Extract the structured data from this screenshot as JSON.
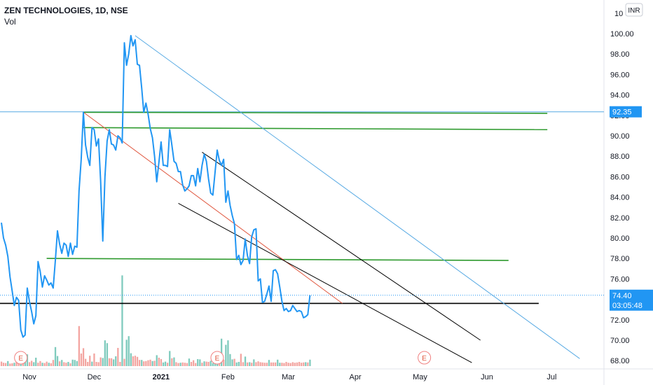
{
  "header": {
    "symbol_line": "ZEN TECHNOLOGIES, 1D, NSE",
    "volume_label": "Vol",
    "currency": "INR"
  },
  "colors": {
    "price": "#2196f3",
    "vol_up": "#7fcbbd",
    "vol_down": "#f3a5a1",
    "green_line": "#2e9a2e",
    "black_line": "#000000",
    "blue_line": "#56a9e3",
    "red_line": "#e0573f",
    "label_blue": "#2196f3"
  },
  "chart_data": {
    "type": "line",
    "title": "ZEN TECHNOLOGIES, 1D, NSE",
    "ylim": [
      67.5,
      101.5
    ],
    "y_ticks": [
      "100.00",
      "98.00",
      "96.00",
      "94.00",
      "92.00",
      "90.00",
      "88.00",
      "86.00",
      "84.00",
      "82.00",
      "80.00",
      "78.00",
      "76.00",
      "74.00",
      "72.00",
      "70.00",
      "68.00"
    ],
    "top_tick_partial": "10",
    "x_tick_labels": [
      {
        "label": "Nov",
        "day": 0
      },
      {
        "label": "Dec",
        "day": 30
      },
      {
        "label": "2021",
        "day": 61,
        "bold": true
      },
      {
        "label": "Feb",
        "day": 92
      },
      {
        "label": "Mar",
        "day": 120
      },
      {
        "label": "Apr",
        "day": 151
      },
      {
        "label": "May",
        "day": 181
      },
      {
        "label": "Jun",
        "day": 212
      },
      {
        "label": "Jul",
        "day": 242
      }
    ],
    "price_series": [
      [
        -13,
        81.5
      ],
      [
        -12,
        80
      ],
      [
        -11,
        79.3
      ],
      [
        -10,
        78.2
      ],
      [
        -9,
        76.2
      ],
      [
        -8,
        74.8
      ],
      [
        -7,
        73.4
      ],
      [
        -6,
        74.2
      ],
      [
        -5,
        73.9
      ],
      [
        -4,
        71
      ],
      [
        -3,
        70.3
      ],
      [
        -2,
        70.5
      ],
      [
        -1,
        75.1
      ],
      [
        0,
        73.8
      ],
      [
        1,
        72.8
      ],
      [
        2,
        71.6
      ],
      [
        3,
        72.4
      ],
      [
        4,
        77.7
      ],
      [
        5,
        76.7
      ],
      [
        6,
        75.2
      ],
      [
        7,
        76.3
      ],
      [
        8,
        75.9
      ],
      [
        9,
        75.4
      ],
      [
        10,
        75.6
      ],
      [
        11,
        75.1
      ],
      [
        12,
        77.8
      ],
      [
        13,
        80.7
      ],
      [
        14,
        79.4
      ],
      [
        15,
        78.5
      ],
      [
        16,
        79.5
      ],
      [
        17,
        79.3
      ],
      [
        18,
        78.2
      ],
      [
        19,
        79.5
      ],
      [
        20,
        78.4
      ],
      [
        21,
        79.2
      ],
      [
        22,
        79.1
      ],
      [
        23,
        84.6
      ],
      [
        24,
        87.7
      ],
      [
        25,
        92.3
      ],
      [
        26,
        89.1
      ],
      [
        27,
        87.9
      ],
      [
        28,
        87.1
      ],
      [
        29,
        90.8
      ],
      [
        30,
        90.6
      ],
      [
        31,
        89
      ],
      [
        32,
        89.7
      ],
      [
        33,
        85.6
      ],
      [
        34,
        79.7
      ],
      [
        35,
        86
      ],
      [
        36,
        89.5
      ],
      [
        37,
        90.6
      ],
      [
        38,
        89.2
      ],
      [
        39,
        89.1
      ],
      [
        40,
        88.6
      ],
      [
        41,
        90
      ],
      [
        42,
        89.8
      ],
      [
        43,
        89.3
      ],
      [
        44,
        99.1
      ],
      [
        45,
        96.9
      ],
      [
        46,
        98
      ],
      [
        47,
        99.8
      ],
      [
        48,
        98.8
      ],
      [
        49,
        99.4
      ],
      [
        50,
        97
      ],
      [
        51,
        96.9
      ],
      [
        52,
        94.7
      ],
      [
        53,
        92.3
      ],
      [
        54,
        93.2
      ],
      [
        55,
        92.1
      ],
      [
        56,
        90.7
      ],
      [
        57,
        89.8
      ],
      [
        58,
        88
      ],
      [
        59,
        85.5
      ],
      [
        60,
        87.4
      ],
      [
        61,
        89.4
      ],
      [
        62,
        87.1
      ],
      [
        63,
        87.1
      ],
      [
        64,
        87
      ],
      [
        65,
        90.6
      ],
      [
        66,
        89.1
      ],
      [
        67,
        87.5
      ],
      [
        68,
        87.3
      ],
      [
        69,
        86.5
      ],
      [
        70,
        86.5
      ],
      [
        71,
        85.2
      ],
      [
        72,
        84.6
      ],
      [
        73,
        84.8
      ],
      [
        74,
        85.1
      ],
      [
        75,
        86.1
      ],
      [
        76,
        86.1
      ],
      [
        77,
        85.1
      ],
      [
        78,
        86.8
      ],
      [
        79,
        85.5
      ],
      [
        80,
        87.1
      ],
      [
        81,
        88.2
      ],
      [
        82,
        87.5
      ],
      [
        83,
        85.8
      ],
      [
        84,
        84.4
      ],
      [
        85,
        84.2
      ],
      [
        86,
        86.4
      ],
      [
        87,
        88.6
      ],
      [
        88,
        87.6
      ],
      [
        89,
        87.1
      ],
      [
        90,
        87.7
      ],
      [
        91,
        83.5
      ],
      [
        92,
        84.6
      ],
      [
        93,
        83.2
      ],
      [
        94,
        82.2
      ],
      [
        95,
        81.4
      ],
      [
        96,
        77.9
      ],
      [
        97,
        78.3
      ],
      [
        98,
        77.4
      ],
      [
        99,
        77.8
      ],
      [
        100,
        79.9
      ],
      [
        101,
        78.3
      ],
      [
        102,
        77.5
      ],
      [
        103,
        80.1
      ],
      [
        104,
        80.8
      ],
      [
        105,
        80.9
      ],
      [
        106,
        75.8
      ],
      [
        107,
        76
      ],
      [
        108,
        73.7
      ],
      [
        109,
        73.8
      ],
      [
        110,
        74.5
      ],
      [
        111,
        75.3
      ],
      [
        112,
        73.8
      ],
      [
        113,
        76.8
      ],
      [
        114,
        76.9
      ],
      [
        115,
        76.5
      ],
      [
        116,
        75.2
      ],
      [
        117,
        73.8
      ],
      [
        118,
        72.9
      ],
      [
        119,
        73.1
      ],
      [
        120,
        72.8
      ],
      [
        121,
        72.9
      ],
      [
        122,
        73.4
      ],
      [
        123,
        73.1
      ],
      [
        124,
        72.8
      ],
      [
        125,
        72.9
      ],
      [
        126,
        72.8
      ],
      [
        127,
        72.2
      ],
      [
        128,
        72.3
      ],
      [
        129,
        72.5
      ],
      [
        130,
        74.4
      ]
    ],
    "current_price": 74.4,
    "countdown": "03:05:48",
    "level_label": 92.35,
    "volume": [
      [
        -13,
        1.6,
        "down"
      ],
      [
        -12,
        1.2,
        "down"
      ],
      [
        -11,
        1.1,
        "down"
      ],
      [
        -10,
        1.8,
        "up"
      ],
      [
        -9,
        0.9,
        "down"
      ],
      [
        -8,
        1,
        "down"
      ],
      [
        -7,
        1.2,
        "up"
      ],
      [
        -6,
        1.4,
        "down"
      ],
      [
        -5,
        1.3,
        "down"
      ],
      [
        -4,
        0.8,
        "up"
      ],
      [
        -3,
        1.1,
        "down"
      ],
      [
        -2,
        1.6,
        "up"
      ],
      [
        -1,
        4.2,
        "up"
      ],
      [
        0,
        1.4,
        "down"
      ],
      [
        1,
        1.9,
        "down"
      ],
      [
        2,
        1.4,
        "up"
      ],
      [
        3,
        3,
        "up"
      ],
      [
        4,
        1.2,
        "down"
      ],
      [
        5,
        1.8,
        "down"
      ],
      [
        6,
        1.2,
        "up"
      ],
      [
        7,
        1.1,
        "down"
      ],
      [
        8,
        1.6,
        "down"
      ],
      [
        9,
        1.2,
        "up"
      ],
      [
        10,
        1,
        "down"
      ],
      [
        11,
        2.2,
        "down"
      ],
      [
        12,
        6.8,
        "up"
      ],
      [
        13,
        3.6,
        "up"
      ],
      [
        14,
        1.7,
        "down"
      ],
      [
        15,
        2.2,
        "up"
      ],
      [
        16,
        1.4,
        "down"
      ],
      [
        17,
        1.2,
        "down"
      ],
      [
        18,
        1.5,
        "up"
      ],
      [
        19,
        1,
        "down"
      ],
      [
        20,
        2.3,
        "up"
      ],
      [
        21,
        2.2,
        "up"
      ],
      [
        22,
        1.8,
        "up"
      ],
      [
        23,
        14.3,
        "down"
      ],
      [
        24,
        4.5,
        "down"
      ],
      [
        25,
        6.4,
        "down"
      ],
      [
        26,
        2.6,
        "down"
      ],
      [
        27,
        1.5,
        "down"
      ],
      [
        28,
        3.7,
        "down"
      ],
      [
        29,
        1.6,
        "up"
      ],
      [
        30,
        4.5,
        "down"
      ],
      [
        31,
        1.5,
        "down"
      ],
      [
        32,
        1.4,
        "down"
      ],
      [
        33,
        3.1,
        "down"
      ],
      [
        34,
        2.9,
        "up"
      ],
      [
        35,
        9.2,
        "up"
      ],
      [
        36,
        8.2,
        "up"
      ],
      [
        37,
        2.8,
        "down"
      ],
      [
        38,
        2.8,
        "down"
      ],
      [
        39,
        2.4,
        "up"
      ],
      [
        40,
        3.5,
        "up"
      ],
      [
        41,
        6.5,
        "down"
      ],
      [
        42,
        1.5,
        "down"
      ],
      [
        43,
        32.4,
        "up"
      ],
      [
        44,
        2.6,
        "down"
      ],
      [
        45,
        9.4,
        "up"
      ],
      [
        46,
        10.7,
        "up"
      ],
      [
        47,
        4.6,
        "up"
      ],
      [
        48,
        3.5,
        "down"
      ],
      [
        49,
        3.7,
        "down"
      ],
      [
        50,
        3.3,
        "down"
      ],
      [
        51,
        2.2,
        "down"
      ],
      [
        52,
        2.2,
        "up"
      ],
      [
        53,
        1.7,
        "down"
      ],
      [
        54,
        1.8,
        "down"
      ],
      [
        55,
        2.1,
        "down"
      ],
      [
        56,
        2.3,
        "down"
      ],
      [
        57,
        1.8,
        "up"
      ],
      [
        58,
        1.9,
        "down"
      ],
      [
        59,
        3.9,
        "up"
      ],
      [
        60,
        3,
        "down"
      ],
      [
        61,
        2.5,
        "down"
      ],
      [
        62,
        1.3,
        "up"
      ],
      [
        63,
        1.6,
        "up"
      ],
      [
        64,
        1.2,
        "down"
      ],
      [
        65,
        5.4,
        "up"
      ],
      [
        66,
        2.8,
        "down"
      ],
      [
        67,
        3.1,
        "up"
      ],
      [
        68,
        1.4,
        "down"
      ],
      [
        69,
        1.1,
        "down"
      ],
      [
        70,
        1.2,
        "up"
      ],
      [
        71,
        1.3,
        "down"
      ],
      [
        72,
        1.2,
        "down"
      ],
      [
        73,
        1.1,
        "down"
      ],
      [
        74,
        2.7,
        "up"
      ],
      [
        75,
        1.5,
        "down"
      ],
      [
        76,
        2.1,
        "down"
      ],
      [
        77,
        1.1,
        "down"
      ],
      [
        78,
        2.5,
        "up"
      ],
      [
        79,
        2.4,
        "up"
      ],
      [
        80,
        1.2,
        "down"
      ],
      [
        81,
        1.7,
        "up"
      ],
      [
        82,
        1.6,
        "down"
      ],
      [
        83,
        1.5,
        "down"
      ],
      [
        84,
        1.9,
        "up"
      ],
      [
        85,
        1.1,
        "up"
      ],
      [
        86,
        1.3,
        "up"
      ],
      [
        87,
        4.1,
        "up"
      ],
      [
        88,
        3.7,
        "down"
      ],
      [
        89,
        9.8,
        "up"
      ],
      [
        90,
        2.3,
        "down"
      ],
      [
        91,
        7.6,
        "up"
      ],
      [
        92,
        9.2,
        "up"
      ],
      [
        93,
        4.3,
        "up"
      ],
      [
        94,
        2.4,
        "up"
      ],
      [
        95,
        2.6,
        "down"
      ],
      [
        96,
        1.3,
        "up"
      ],
      [
        97,
        1.5,
        "up"
      ],
      [
        98,
        4.4,
        "down"
      ],
      [
        99,
        1.4,
        "down"
      ],
      [
        100,
        3.4,
        "up"
      ],
      [
        101,
        1.3,
        "down"
      ],
      [
        102,
        1.4,
        "up"
      ],
      [
        103,
        1.2,
        "down"
      ],
      [
        104,
        2.4,
        "up"
      ],
      [
        105,
        1.4,
        "down"
      ],
      [
        106,
        1.7,
        "down"
      ],
      [
        107,
        1.4,
        "down"
      ],
      [
        108,
        1.3,
        "down"
      ],
      [
        109,
        1.2,
        "down"
      ],
      [
        110,
        1.2,
        "down"
      ],
      [
        111,
        2.2,
        "up"
      ],
      [
        112,
        1.3,
        "down"
      ],
      [
        113,
        1.3,
        "down"
      ],
      [
        114,
        1.3,
        "down"
      ],
      [
        115,
        2.3,
        "up"
      ],
      [
        116,
        1.2,
        "up"
      ],
      [
        117,
        1.2,
        "down"
      ],
      [
        118,
        1.1,
        "down"
      ],
      [
        119,
        1.5,
        "down"
      ],
      [
        120,
        1.2,
        "down"
      ],
      [
        121,
        1.1,
        "down"
      ],
      [
        122,
        1.4,
        "down"
      ],
      [
        123,
        1.2,
        "down"
      ],
      [
        124,
        1.3,
        "down"
      ],
      [
        125,
        1.5,
        "down"
      ],
      [
        126,
        1.2,
        "down"
      ],
      [
        127,
        1.3,
        "down"
      ],
      [
        128,
        1.4,
        "up"
      ],
      [
        129,
        1.3,
        "down"
      ],
      [
        130,
        2.3,
        "up"
      ]
    ],
    "earnings_markers": [
      {
        "label": "E",
        "day": -4
      },
      {
        "label": "E",
        "day": 87
      },
      {
        "label": "E",
        "day": 183
      }
    ],
    "drawings": [
      {
        "kind": "hline",
        "color": "blue_line",
        "y": 92.35
      },
      {
        "kind": "segment",
        "color": "green_line",
        "p1": [
          25,
          92.3
        ],
        "p2": [
          240,
          92.2
        ]
      },
      {
        "kind": "segment",
        "color": "green_line",
        "p1": [
          25,
          90.8
        ],
        "p2": [
          240,
          90.6
        ]
      },
      {
        "kind": "segment",
        "color": "green_line",
        "p1": [
          8,
          78.0
        ],
        "p2": [
          222,
          77.8
        ]
      },
      {
        "kind": "segment",
        "color": "black_line",
        "p1": [
          -28,
          73.6
        ],
        "p2": [
          236,
          73.6
        ]
      },
      {
        "kind": "segment",
        "color": "blue_line",
        "p1": [
          49,
          99.8
        ],
        "p2": [
          255,
          68.2
        ]
      },
      {
        "kind": "segment",
        "color": "red_line",
        "p1": [
          25,
          92.3
        ],
        "p2": [
          145,
          73.6
        ]
      },
      {
        "kind": "segment",
        "color": "black_line",
        "p1": [
          69,
          83.4
        ],
        "p2": [
          205,
          67.8
        ]
      },
      {
        "kind": "segment",
        "color": "black_line",
        "p1": [
          80,
          88.4
        ],
        "p2": [
          209,
          70.0
        ]
      }
    ]
  }
}
